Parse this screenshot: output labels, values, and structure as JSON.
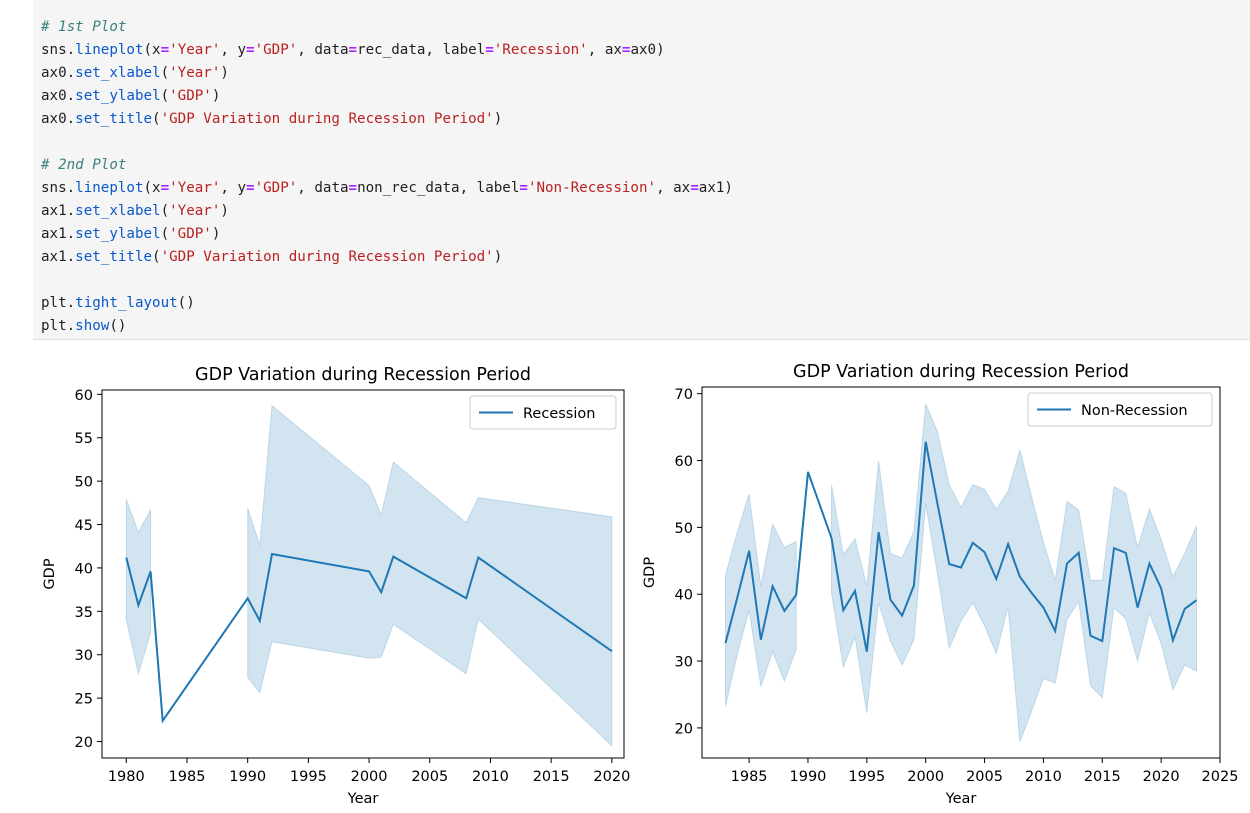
{
  "code": [
    [
      {
        "t": "# 1st Plot",
        "c": "cm"
      }
    ],
    [
      {
        "t": "sns.",
        "c": ""
      },
      {
        "t": "lineplot",
        "c": "fn"
      },
      {
        "t": "(x",
        "c": ""
      },
      {
        "t": "=",
        "c": "op"
      },
      {
        "t": "'Year'",
        "c": "st"
      },
      {
        "t": ", y",
        "c": ""
      },
      {
        "t": "=",
        "c": "op"
      },
      {
        "t": "'GDP'",
        "c": "st"
      },
      {
        "t": ", data",
        "c": ""
      },
      {
        "t": "=",
        "c": "op"
      },
      {
        "t": "rec_data, label",
        "c": ""
      },
      {
        "t": "=",
        "c": "op"
      },
      {
        "t": "'Recession'",
        "c": "st"
      },
      {
        "t": ", ax",
        "c": ""
      },
      {
        "t": "=",
        "c": "op"
      },
      {
        "t": "ax0)",
        "c": ""
      }
    ],
    [
      {
        "t": "ax0.",
        "c": ""
      },
      {
        "t": "set_xlabel",
        "c": "fn"
      },
      {
        "t": "(",
        "c": ""
      },
      {
        "t": "'Year'",
        "c": "st"
      },
      {
        "t": ")",
        "c": ""
      }
    ],
    [
      {
        "t": "ax0.",
        "c": ""
      },
      {
        "t": "set_ylabel",
        "c": "fn"
      },
      {
        "t": "(",
        "c": ""
      },
      {
        "t": "'GDP'",
        "c": "st"
      },
      {
        "t": ")",
        "c": ""
      }
    ],
    [
      {
        "t": "ax0.",
        "c": ""
      },
      {
        "t": "set_title",
        "c": "fn"
      },
      {
        "t": "(",
        "c": ""
      },
      {
        "t": "'GDP Variation during Recession Period'",
        "c": "st"
      },
      {
        "t": ")",
        "c": ""
      }
    ],
    [],
    [
      {
        "t": "# 2nd Plot",
        "c": "cm"
      }
    ],
    [
      {
        "t": "sns.",
        "c": ""
      },
      {
        "t": "lineplot",
        "c": "fn"
      },
      {
        "t": "(x",
        "c": ""
      },
      {
        "t": "=",
        "c": "op"
      },
      {
        "t": "'Year'",
        "c": "st"
      },
      {
        "t": ", y",
        "c": ""
      },
      {
        "t": "=",
        "c": "op"
      },
      {
        "t": "'GDP'",
        "c": "st"
      },
      {
        "t": ", data",
        "c": ""
      },
      {
        "t": "=",
        "c": "op"
      },
      {
        "t": "non_rec_data, label",
        "c": ""
      },
      {
        "t": "=",
        "c": "op"
      },
      {
        "t": "'Non-Recession'",
        "c": "st"
      },
      {
        "t": ", ax",
        "c": ""
      },
      {
        "t": "=",
        "c": "op"
      },
      {
        "t": "ax1)",
        "c": ""
      }
    ],
    [
      {
        "t": "ax1.",
        "c": ""
      },
      {
        "t": "set_xlabel",
        "c": "fn"
      },
      {
        "t": "(",
        "c": ""
      },
      {
        "t": "'Year'",
        "c": "st"
      },
      {
        "t": ")",
        "c": ""
      }
    ],
    [
      {
        "t": "ax1.",
        "c": ""
      },
      {
        "t": "set_ylabel",
        "c": "fn"
      },
      {
        "t": "(",
        "c": ""
      },
      {
        "t": "'GDP'",
        "c": "st"
      },
      {
        "t": ")",
        "c": ""
      }
    ],
    [
      {
        "t": "ax1.",
        "c": ""
      },
      {
        "t": "set_title",
        "c": "fn"
      },
      {
        "t": "(",
        "c": ""
      },
      {
        "t": "'GDP Variation during Recession Period'",
        "c": "st"
      },
      {
        "t": ")",
        "c": ""
      }
    ],
    [],
    [
      {
        "t": "plt.",
        "c": ""
      },
      {
        "t": "tight_layout",
        "c": "fn"
      },
      {
        "t": "()",
        "c": ""
      }
    ],
    [
      {
        "t": "plt.",
        "c": ""
      },
      {
        "t": "show",
        "c": "fn"
      },
      {
        "t": "()",
        "c": ""
      }
    ]
  ],
  "colors": {
    "line": "#1f77b4",
    "band": "#1f77b4"
  },
  "chart_data": [
    {
      "type": "line",
      "title": "GDP Variation during Recession Period",
      "xlabel": "Year",
      "ylabel": "GDP",
      "xlim": [
        1978,
        2021
      ],
      "ylim": [
        18.1,
        60.5
      ],
      "xticks": [
        1980,
        1985,
        1990,
        1995,
        2000,
        2005,
        2010,
        2015,
        2020
      ],
      "yticks": [
        20,
        25,
        30,
        35,
        40,
        45,
        50,
        55,
        60
      ],
      "legend_position": "top-right",
      "grid": false,
      "series": [
        {
          "name": "Recession",
          "x": [
            1980,
            1981,
            1982,
            1983,
            1990,
            1991,
            1992,
            2000,
            2001,
            2002,
            2008,
            2009,
            2020
          ],
          "y": [
            41.2,
            35.7,
            39.6,
            22.4,
            36.5,
            33.9,
            41.6,
            39.6,
            37.2,
            41.3,
            36.5,
            41.2,
            30.4
          ],
          "ci_lower": [
            34.0,
            27.8,
            32.5,
            null,
            27.4,
            25.6,
            31.5,
            29.6,
            29.7,
            33.5,
            27.8,
            34.1,
            19.5
          ],
          "ci_upper": [
            47.9,
            44.1,
            46.7,
            null,
            46.9,
            42.6,
            58.7,
            49.5,
            46.1,
            52.2,
            45.2,
            48.1,
            45.9
          ]
        }
      ]
    },
    {
      "type": "line",
      "title": "GDP Variation during Recession Period",
      "xlabel": "Year",
      "ylabel": "GDP",
      "xlim": [
        1981,
        2025
      ],
      "ylim": [
        15.5,
        71
      ],
      "xticks": [
        1985,
        1990,
        1995,
        2000,
        2005,
        2010,
        2015,
        2020,
        2025
      ],
      "yticks": [
        20,
        30,
        40,
        50,
        60,
        70
      ],
      "legend_position": "top-right",
      "grid": false,
      "series": [
        {
          "name": "Non-Recession",
          "x": [
            1983,
            1984,
            1985,
            1986,
            1987,
            1988,
            1989,
            1990,
            1991,
            1992,
            1993,
            1994,
            1995,
            1996,
            1997,
            1998,
            1999,
            2000,
            2001,
            2002,
            2003,
            2004,
            2005,
            2006,
            2007,
            2008,
            2009,
            2010,
            2011,
            2012,
            2013,
            2014,
            2015,
            2016,
            2017,
            2018,
            2019,
            2020,
            2021,
            2022,
            2023
          ],
          "y": [
            32.7,
            39.5,
            46.5,
            33.2,
            41.2,
            37.5,
            39.9,
            58.3,
            53.4,
            48.4,
            37.6,
            40.5,
            31.4,
            49.3,
            39.2,
            36.8,
            41.3,
            62.8,
            53.5,
            44.5,
            44.0,
            47.7,
            46.3,
            42.3,
            47.5,
            42.6,
            40.2,
            38.0,
            34.5,
            44.6,
            46.2,
            33.8,
            33.0,
            46.9,
            46.2,
            38.0,
            44.6,
            40.9,
            33.1,
            37.8,
            39.1
          ],
          "ci_lower": [
            23.2,
            31.0,
            37.6,
            26.2,
            31.4,
            27.0,
            31.7,
            null,
            null,
            40.2,
            29.1,
            33.6,
            22.2,
            38.7,
            33.0,
            29.4,
            33.2,
            53.5,
            43.0,
            31.9,
            36.0,
            38.7,
            35.3,
            31.1,
            38.1,
            17.9,
            22.5,
            27.4,
            26.7,
            36.2,
            38.9,
            26.3,
            24.5,
            38.0,
            36.3,
            30.0,
            37.2,
            32.6,
            25.7,
            29.4,
            28.5
          ],
          "ci_upper": [
            42.9,
            49.3,
            55.0,
            41.2,
            50.5,
            47.0,
            47.9,
            null,
            null,
            56.4,
            45.9,
            48.3,
            41.2,
            60.0,
            46.1,
            45.4,
            49.4,
            68.5,
            64.3,
            56.4,
            53.0,
            56.4,
            55.7,
            52.7,
            55.4,
            61.6,
            54.6,
            47.8,
            42.1,
            53.9,
            52.6,
            42.1,
            42.1,
            56.1,
            55.1,
            47.0,
            52.8,
            48.2,
            42.6,
            46.1,
            50.2
          ]
        }
      ]
    }
  ]
}
